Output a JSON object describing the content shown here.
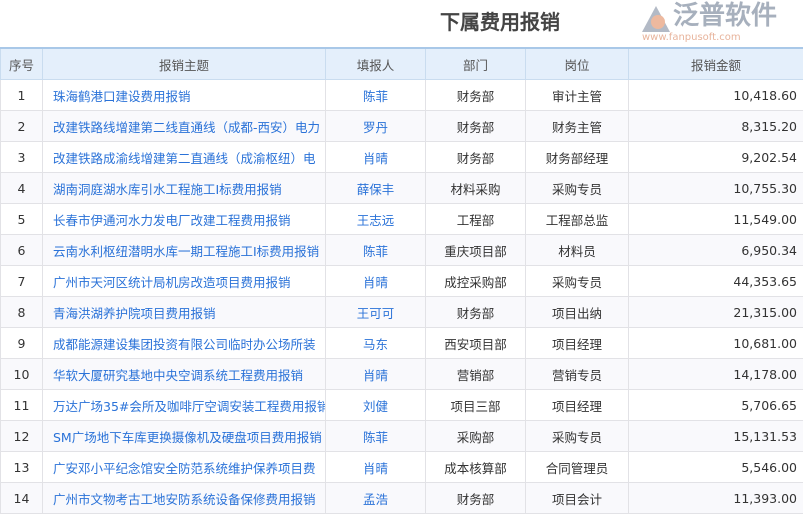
{
  "title": "下属费用报销",
  "columns": [
    "序号",
    "报销主题",
    "填报人",
    "部门",
    "岗位",
    "报销金额"
  ],
  "rows": [
    [
      "1",
      "珠海鹤港口建设费用报销",
      "陈菲",
      "财务部",
      "审计主管",
      "10,418.60"
    ],
    [
      "2",
      "改建铁路线增建第二线直通线（成都-西安）电力",
      "罗丹",
      "财务部",
      "财务主管",
      "8,315.20"
    ],
    [
      "3",
      "改建铁路成渝线增建第二直通线（成渝枢纽）电",
      "肖晴",
      "财务部",
      "财务部经理",
      "9,202.54"
    ],
    [
      "4",
      "湖南洞庭湖水库引水工程施工I标费用报销",
      "薛保丰",
      "材料采购",
      "采购专员",
      "10,755.30"
    ],
    [
      "5",
      "长春市伊通河水力发电厂改建工程费用报销",
      "王志远",
      "工程部",
      "工程部总监",
      "11,549.00"
    ],
    [
      "6",
      "云南水利枢纽潜明水库一期工程施工I标费用报销",
      "陈菲",
      "重庆项目部",
      "材料员",
      "6,950.34"
    ],
    [
      "7",
      "广州市天河区统计局机房改造项目费用报销",
      "肖晴",
      "成控采购部",
      "采购专员",
      "44,353.65"
    ],
    [
      "8",
      "青海洪湖养护院项目费用报销",
      "王可可",
      "财务部",
      "项目出纳",
      "21,315.00"
    ],
    [
      "9",
      "成都能源建设集团投资有限公司临时办公场所装",
      "马东",
      "西安项目部",
      "项目经理",
      "10,681.00"
    ],
    [
      "10",
      "华软大厦研究基地中央空调系统工程费用报销",
      "肖晴",
      "营销部",
      "营销专员",
      "14,178.00"
    ],
    [
      "11",
      "万达广场35#会所及咖啡厅空调安装工程费用报销",
      "刘健",
      "项目三部",
      "项目经理",
      "5,706.65"
    ],
    [
      "12",
      "SM广场地下车库更换摄像机及硬盘项目费用报销",
      "陈菲",
      "采购部",
      "采购专员",
      "15,131.53"
    ],
    [
      "13",
      "广安邓小平纪念馆安全防范系统维护保养项目费",
      "肖晴",
      "成本核算部",
      "合同管理员",
      "5,546.00"
    ],
    [
      "14",
      "广州市文物考古工地安防系统设备保修费用报销",
      "孟浩",
      "财务部",
      "项目会计",
      "11,393.00"
    ]
  ],
  "watermark": {
    "name": "泛普软件",
    "url": "www.fanpusoft.com"
  }
}
